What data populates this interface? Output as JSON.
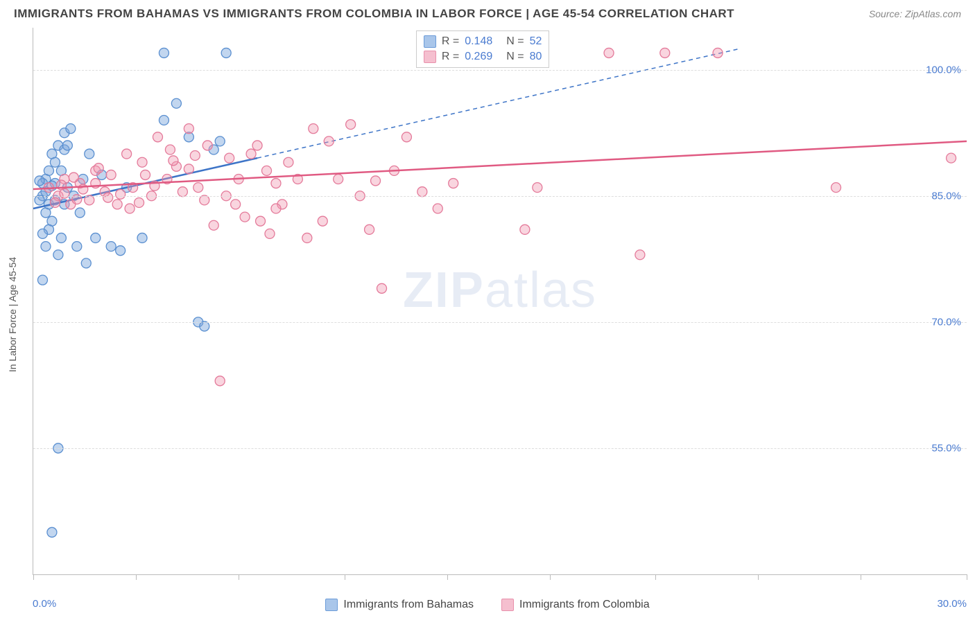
{
  "header": {
    "title": "IMMIGRANTS FROM BAHAMAS VS IMMIGRANTS FROM COLOMBIA IN LABOR FORCE | AGE 45-54 CORRELATION CHART",
    "source": "Source: ZipAtlas.com"
  },
  "chart": {
    "type": "scatter",
    "y_axis_title": "In Labor Force | Age 45-54",
    "xlim": [
      0,
      30
    ],
    "ylim": [
      40,
      105
    ],
    "x_ticks": [
      0,
      3.3,
      6.6,
      10,
      13.3,
      16.6,
      20,
      23.3,
      26.6,
      30
    ],
    "x_tick_labels": {
      "first": "0.0%",
      "last": "30.0%"
    },
    "y_gridlines": [
      55,
      70,
      85,
      100
    ],
    "y_tick_labels": [
      "55.0%",
      "70.0%",
      "85.0%",
      "100.0%"
    ],
    "background_color": "#ffffff",
    "grid_color": "#dddddd",
    "axis_color": "#bbbbbb",
    "tick_label_color": "#4a7bd0",
    "watermark": "ZIPatlas",
    "series": [
      {
        "name": "Immigrants from Bahamas",
        "color_fill": "rgba(120,165,220,0.45)",
        "color_stroke": "#5a8fd0",
        "swatch_fill": "#a9c6ea",
        "swatch_border": "#6b9bd8",
        "marker_radius": 7,
        "R": 0.148,
        "N": 52,
        "trend": {
          "solid": {
            "x1": 0,
            "y1": 83.5,
            "x2": 7.2,
            "y2": 89.5
          },
          "dashed": {
            "x1": 7.2,
            "y1": 89.5,
            "x2": 22.7,
            "y2": 102.5
          },
          "color": "#3d74c7",
          "width": 2.5
        },
        "points": [
          [
            0.3,
            85
          ],
          [
            0.4,
            87
          ],
          [
            0.5,
            88
          ],
          [
            0.6,
            90
          ],
          [
            0.8,
            91
          ],
          [
            0.5,
            84
          ],
          [
            0.7,
            86.5
          ],
          [
            0.4,
            83
          ],
          [
            0.6,
            82
          ],
          [
            0.9,
            80
          ],
          [
            1.0,
            92.5
          ],
          [
            1.2,
            93
          ],
          [
            0.3,
            86.5
          ],
          [
            0.7,
            89
          ],
          [
            1.3,
            85
          ],
          [
            1.5,
            83
          ],
          [
            1.6,
            87
          ],
          [
            1.0,
            84
          ],
          [
            1.1,
            86
          ],
          [
            0.5,
            81
          ],
          [
            0.2,
            84.5
          ],
          [
            0.8,
            78
          ],
          [
            1.4,
            79
          ],
          [
            2.0,
            80
          ],
          [
            2.5,
            79
          ],
          [
            1.0,
            90.5
          ],
          [
            1.8,
            90
          ],
          [
            0.4,
            79
          ],
          [
            4.6,
            96
          ],
          [
            5.0,
            92
          ],
          [
            5.3,
            70
          ],
          [
            5.5,
            69.5
          ],
          [
            5.8,
            90.5
          ],
          [
            6.0,
            91.5
          ],
          [
            6.2,
            102
          ],
          [
            4.2,
            102
          ],
          [
            3.5,
            80
          ],
          [
            2.8,
            78.5
          ],
          [
            3.0,
            86
          ],
          [
            2.2,
            87.5
          ],
          [
            1.7,
            77
          ],
          [
            4.2,
            94
          ],
          [
            0.3,
            75
          ],
          [
            0.8,
            55
          ],
          [
            0.6,
            45
          ],
          [
            0.3,
            80.5
          ],
          [
            0.9,
            88
          ],
          [
            1.1,
            91
          ],
          [
            0.6,
            86.2
          ],
          [
            0.4,
            85.5
          ],
          [
            0.2,
            86.8
          ],
          [
            0.7,
            84.5
          ]
        ]
      },
      {
        "name": "Immigrants from Colombia",
        "color_fill": "rgba(240,150,175,0.40)",
        "color_stroke": "#e47a9a",
        "swatch_fill": "#f5bfcf",
        "swatch_border": "#e88fab",
        "marker_radius": 7,
        "R": 0.269,
        "N": 80,
        "trend": {
          "solid": {
            "x1": 0,
            "y1": 85.8,
            "x2": 30,
            "y2": 91.5
          },
          "color": "#e05a82",
          "width": 2.5
        },
        "points": [
          [
            0.5,
            86
          ],
          [
            0.8,
            85
          ],
          [
            1.0,
            87
          ],
          [
            1.2,
            84
          ],
          [
            1.5,
            86.5
          ],
          [
            1.8,
            84.5
          ],
          [
            2.0,
            88
          ],
          [
            2.3,
            85.5
          ],
          [
            2.5,
            87.5
          ],
          [
            2.7,
            84
          ],
          [
            3.0,
            90
          ],
          [
            3.2,
            86
          ],
          [
            3.5,
            89
          ],
          [
            3.8,
            85
          ],
          [
            4.0,
            92
          ],
          [
            4.3,
            87
          ],
          [
            4.6,
            88.5
          ],
          [
            5.0,
            93
          ],
          [
            5.3,
            86
          ],
          [
            5.6,
            91
          ],
          [
            3.6,
            87.5
          ],
          [
            6.2,
            85
          ],
          [
            6.5,
            84
          ],
          [
            6.8,
            82.5
          ],
          [
            7.0,
            90
          ],
          [
            7.3,
            82
          ],
          [
            7.5,
            88
          ],
          [
            7.6,
            80.5
          ],
          [
            7.2,
            91
          ],
          [
            7.8,
            86.5
          ],
          [
            8.0,
            84
          ],
          [
            6.0,
            63
          ],
          [
            2.0,
            86.5
          ],
          [
            2.4,
            84.8
          ],
          [
            4.4,
            90.5
          ],
          [
            8.5,
            87
          ],
          [
            9.0,
            93
          ],
          [
            9.3,
            82
          ],
          [
            9.8,
            87
          ],
          [
            10.2,
            93.5
          ],
          [
            10.5,
            85
          ],
          [
            10.8,
            81
          ],
          [
            6.6,
            87
          ],
          [
            5.0,
            88.2
          ],
          [
            4.8,
            85.5
          ],
          [
            5.5,
            84.5
          ],
          [
            3.4,
            84.2
          ],
          [
            1.6,
            85.8
          ],
          [
            11.2,
            74
          ],
          [
            11.6,
            88
          ],
          [
            12.0,
            92
          ],
          [
            12.5,
            85.5
          ],
          [
            13.0,
            83.5
          ],
          [
            13.5,
            86.5
          ],
          [
            15.8,
            81
          ],
          [
            16.2,
            86
          ],
          [
            18.5,
            102
          ],
          [
            19.5,
            78
          ],
          [
            20.3,
            102
          ],
          [
            22.0,
            102
          ],
          [
            25.8,
            86
          ],
          [
            29.5,
            89.5
          ],
          [
            9.5,
            91.5
          ],
          [
            8.2,
            89
          ],
          [
            7.8,
            83.5
          ],
          [
            6.3,
            89.5
          ],
          [
            5.8,
            81.5
          ],
          [
            1.0,
            85.3
          ],
          [
            1.3,
            87.2
          ],
          [
            0.7,
            84.2
          ],
          [
            2.1,
            88.3
          ],
          [
            3.1,
            83.5
          ],
          [
            3.9,
            86.2
          ],
          [
            4.5,
            89.2
          ],
          [
            5.2,
            89.8
          ],
          [
            0.9,
            86.3
          ],
          [
            1.4,
            84.6
          ],
          [
            2.8,
            85.2
          ],
          [
            11.0,
            86.8
          ],
          [
            8.8,
            80
          ]
        ]
      }
    ]
  },
  "bottom_legend": [
    {
      "label": "Immigrants from Bahamas",
      "fill": "#a9c6ea",
      "border": "#6b9bd8"
    },
    {
      "label": "Immigrants from Colombia",
      "fill": "#f5bfcf",
      "border": "#e88fab"
    }
  ]
}
